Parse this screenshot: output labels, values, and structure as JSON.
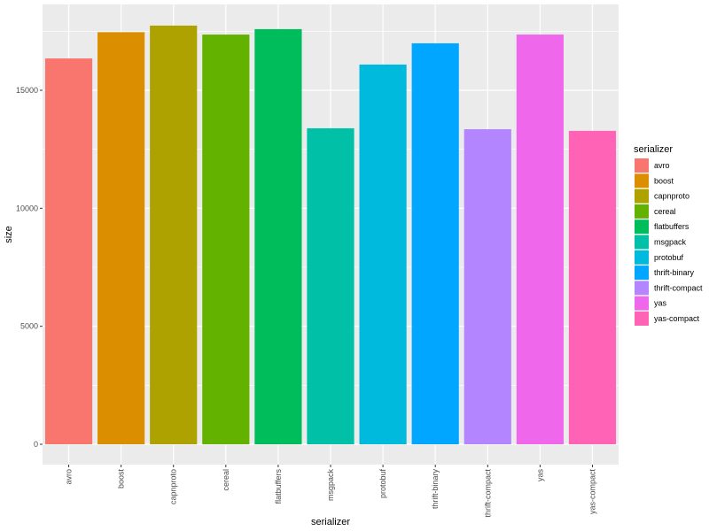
{
  "chart_data": {
    "type": "bar",
    "xlabel": "serializer",
    "ylabel": "size",
    "categories": [
      "avro",
      "boost",
      "capnproto",
      "cereal",
      "flatbuffers",
      "msgpack",
      "protobuf",
      "thrift-binary",
      "thrift-compact",
      "yas",
      "yas-compact"
    ],
    "values": [
      16350,
      17460,
      17740,
      17360,
      17590,
      13390,
      16090,
      16990,
      13350,
      17360,
      13280
    ],
    "colors": [
      "#F8766D",
      "#DB8E00",
      "#AEA200",
      "#64B200",
      "#00BD5C",
      "#00C1A7",
      "#00BADE",
      "#00A6FF",
      "#B385FF",
      "#EF67EB",
      "#FF63B6"
    ],
    "yticks": [
      0,
      5000,
      10000,
      15000
    ],
    "ylim": [
      0,
      18600
    ],
    "grid": true,
    "legend": {
      "title": "serializer",
      "placement": "right"
    }
  }
}
